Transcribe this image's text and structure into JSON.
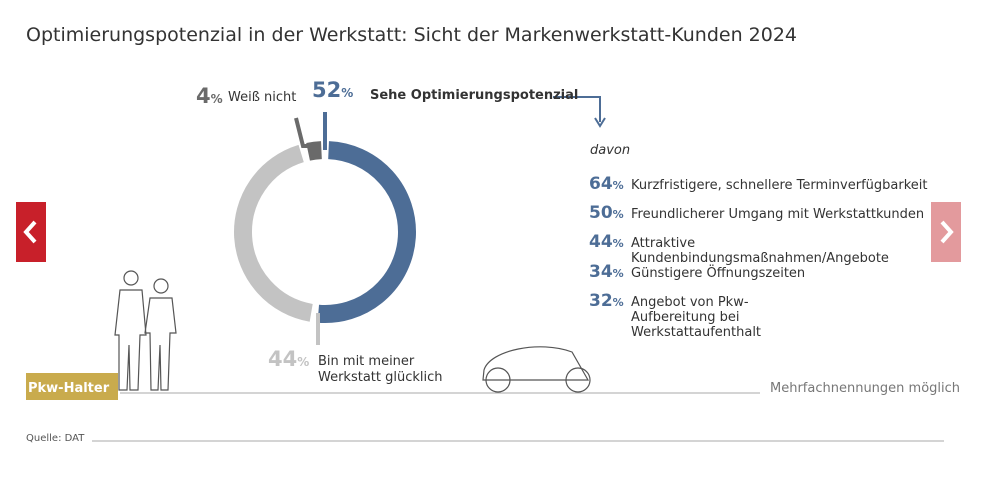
{
  "chart_data": {
    "type": "pie",
    "donut": true,
    "title": "Optimierungspotenzial in der Werkstatt: Sicht der Markenwerkstatt-Kunden 2024",
    "unit": "%",
    "categories": [
      "Sehe Optimierungspotenzial",
      "Bin mit meiner Werkstatt glücklich",
      "Weiß nicht"
    ],
    "values": [
      52,
      44,
      4
    ],
    "colors": [
      "#4d6d96",
      "#c3c3c3",
      "#6a6a6a"
    ],
    "breakdown": {
      "title": "davon",
      "categories": [
        "Kurzfristigere, schnellere Terminverfügbarkeit",
        "Freundlicherer Umgang mit Werkstattkunden",
        "Attraktive Kundenbindungsmaßnahmen/Angebote",
        "Günstigere Öffnungszeiten",
        "Angebot von Pkw-Aufbereitung bei Werkstattaufenthalt"
      ],
      "values": [
        64,
        50,
        44,
        34,
        32
      ]
    },
    "badge": "Pkw-Halter",
    "note": "Mehrfachnennungen möglich",
    "source": "Quelle: DAT"
  }
}
